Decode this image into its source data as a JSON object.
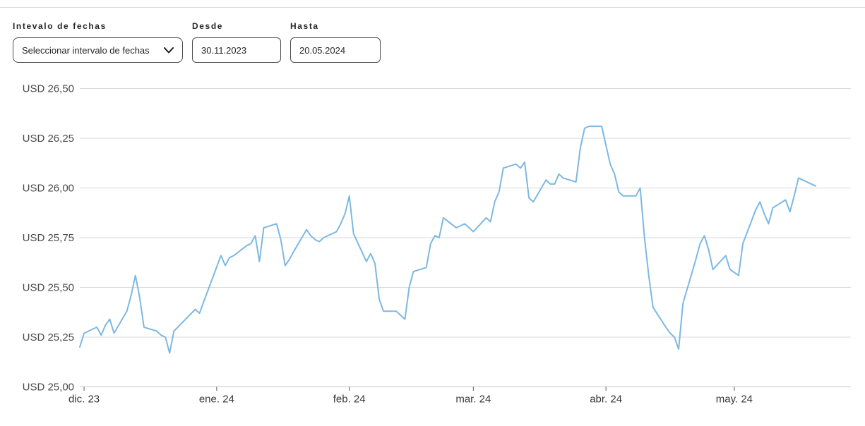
{
  "controls": {
    "date_range": {
      "label": "Intevalo de fechas",
      "value": "Seleccionar intervalo de fechas"
    },
    "desde": {
      "label": "Desde",
      "value": "30.11.2023"
    },
    "hasta": {
      "label": "Hasta",
      "value": "20.05.2024"
    }
  },
  "colors": {
    "line": "#7db8e2",
    "gridline": "#d9d9d9",
    "axis_line": "#c9c9c9",
    "tick": "#595959",
    "y_label": "#4a4a4a",
    "x_label": "#383838",
    "control_border": "#4d4d4d",
    "text": "#262626",
    "divider": "#d9d9d9"
  },
  "chart_data": {
    "type": "line",
    "title": "",
    "currency": "USD",
    "x_unit": "calendar days since 2023-11-30",
    "x_range_dates": [
      "30.11.2023",
      "20.05.2024"
    ],
    "ylim": [
      25.0,
      26.5
    ],
    "xlim_days": [
      0,
      172
    ],
    "grid": "horizontal",
    "legend": "none",
    "y_ticks": [
      {
        "label": "USD 26,50",
        "value": 26.5
      },
      {
        "label": "USD 26,25",
        "value": 26.25
      },
      {
        "label": "USD 26,00",
        "value": 26.0
      },
      {
        "label": "USD 25,75",
        "value": 25.75
      },
      {
        "label": "USD 25,50",
        "value": 25.5
      },
      {
        "label": "USD 25,25",
        "value": 25.25
      },
      {
        "label": "USD 25,00",
        "value": 25.0
      }
    ],
    "x_ticks": [
      {
        "label": "dic. 23",
        "day": 1
      },
      {
        "label": "ene. 24",
        "day": 32
      },
      {
        "label": "feb. 24",
        "day": 63
      },
      {
        "label": "mar. 24",
        "day": 92
      },
      {
        "label": "abr. 24",
        "day": 123
      },
      {
        "label": "may. 24",
        "day": 153
      }
    ],
    "series": [
      {
        "name": "USD price",
        "points": [
          [
            0,
            25.2
          ],
          [
            1,
            25.27
          ],
          [
            4,
            25.3
          ],
          [
            5,
            25.26
          ],
          [
            6,
            25.31
          ],
          [
            7,
            25.34
          ],
          [
            8,
            25.27
          ],
          [
            11,
            25.38
          ],
          [
            12,
            25.46
          ],
          [
            13,
            25.56
          ],
          [
            14,
            25.45
          ],
          [
            15,
            25.3
          ],
          [
            18,
            25.28
          ],
          [
            19,
            25.26
          ],
          [
            20,
            25.25
          ],
          [
            21,
            25.17
          ],
          [
            22,
            25.28
          ],
          [
            27,
            25.39
          ],
          [
            28,
            25.37
          ],
          [
            29,
            25.43
          ],
          [
            33,
            25.66
          ],
          [
            34,
            25.61
          ],
          [
            35,
            25.65
          ],
          [
            36,
            25.66
          ],
          [
            39,
            25.71
          ],
          [
            40,
            25.72
          ],
          [
            41,
            25.76
          ],
          [
            42,
            25.63
          ],
          [
            43,
            25.8
          ],
          [
            46,
            25.82
          ],
          [
            47,
            25.74
          ],
          [
            48,
            25.61
          ],
          [
            49,
            25.64
          ],
          [
            50,
            25.68
          ],
          [
            53,
            25.79
          ],
          [
            54,
            25.76
          ],
          [
            55,
            25.74
          ],
          [
            56,
            25.73
          ],
          [
            57,
            25.75
          ],
          [
            60,
            25.78
          ],
          [
            61,
            25.82
          ],
          [
            62,
            25.87
          ],
          [
            63,
            25.96
          ],
          [
            64,
            25.77
          ],
          [
            67,
            25.63
          ],
          [
            68,
            25.67
          ],
          [
            69,
            25.62
          ],
          [
            70,
            25.44
          ],
          [
            71,
            25.38
          ],
          [
            74,
            25.38
          ],
          [
            75,
            25.36
          ],
          [
            76,
            25.34
          ],
          [
            77,
            25.5
          ],
          [
            78,
            25.58
          ],
          [
            81,
            25.6
          ],
          [
            82,
            25.72
          ],
          [
            83,
            25.76
          ],
          [
            84,
            25.75
          ],
          [
            85,
            25.85
          ],
          [
            88,
            25.8
          ],
          [
            89,
            25.81
          ],
          [
            90,
            25.82
          ],
          [
            91,
            25.8
          ],
          [
            92,
            25.78
          ],
          [
            95,
            25.85
          ],
          [
            96,
            25.83
          ],
          [
            97,
            25.93
          ],
          [
            98,
            25.98
          ],
          [
            99,
            26.1
          ],
          [
            102,
            26.12
          ],
          [
            103,
            26.1
          ],
          [
            104,
            26.13
          ],
          [
            105,
            25.95
          ],
          [
            106,
            25.93
          ],
          [
            109,
            26.04
          ],
          [
            110,
            26.02
          ],
          [
            111,
            26.02
          ],
          [
            112,
            26.07
          ],
          [
            113,
            26.05
          ],
          [
            116,
            26.03
          ],
          [
            117,
            26.2
          ],
          [
            118,
            26.3
          ],
          [
            119,
            26.31
          ],
          [
            122,
            26.31
          ],
          [
            124,
            26.12
          ],
          [
            125,
            26.07
          ],
          [
            126,
            25.98
          ],
          [
            127,
            25.96
          ],
          [
            130,
            25.96
          ],
          [
            131,
            26.0
          ],
          [
            132,
            25.75
          ],
          [
            133,
            25.56
          ],
          [
            134,
            25.4
          ],
          [
            137,
            25.3
          ],
          [
            138,
            25.27
          ],
          [
            139,
            25.25
          ],
          [
            140,
            25.19
          ],
          [
            141,
            25.42
          ],
          [
            144,
            25.64
          ],
          [
            145,
            25.72
          ],
          [
            146,
            25.76
          ],
          [
            147,
            25.69
          ],
          [
            148,
            25.59
          ],
          [
            151,
            25.66
          ],
          [
            152,
            25.59
          ],
          [
            154,
            25.56
          ],
          [
            155,
            25.72
          ],
          [
            158,
            25.89
          ],
          [
            159,
            25.93
          ],
          [
            160,
            25.87
          ],
          [
            161,
            25.82
          ],
          [
            162,
            25.9
          ],
          [
            165,
            25.94
          ],
          [
            166,
            25.88
          ],
          [
            167,
            25.96
          ],
          [
            168,
            26.05
          ],
          [
            169,
            26.04
          ],
          [
            172,
            26.01
          ]
        ]
      }
    ]
  }
}
